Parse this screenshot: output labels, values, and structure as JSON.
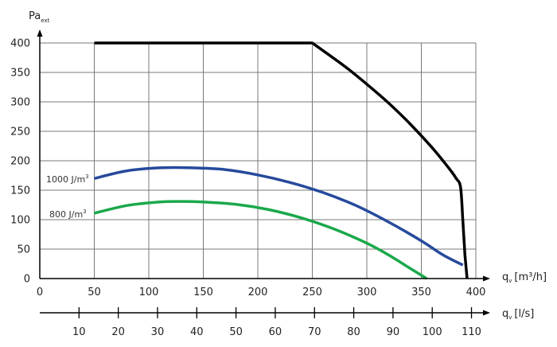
{
  "chart_data": {
    "type": "line",
    "y_axis": {
      "label": "Pa",
      "label_sub": "ext",
      "range": [
        0,
        400
      ],
      "ticks": [
        0,
        50,
        100,
        150,
        200,
        250,
        300,
        350,
        400
      ]
    },
    "x_axis": {
      "label": "q",
      "label_sub": "v",
      "unit": "[m³/h]",
      "range": [
        0,
        400
      ],
      "ticks": [
        0,
        50,
        100,
        150,
        200,
        250,
        300,
        350,
        400
      ]
    },
    "x2_axis": {
      "label": "q",
      "label_sub": "v",
      "unit": "[l/s]",
      "ticks": [
        10,
        20,
        30,
        40,
        50,
        60,
        70,
        80,
        90,
        100,
        110
      ]
    },
    "grid": true,
    "series": [
      {
        "name": "",
        "color": "#000000",
        "points": [
          [
            50,
            400
          ],
          [
            250,
            400
          ],
          [
            280,
            360
          ],
          [
            300,
            330
          ],
          [
            320,
            298
          ],
          [
            340,
            262
          ],
          [
            360,
            222
          ],
          [
            375,
            188
          ],
          [
            382,
            170
          ],
          [
            386,
            155
          ],
          [
            388,
            100
          ],
          [
            390,
            40
          ],
          [
            392,
            0
          ]
        ]
      },
      {
        "name": "1000 J/m",
        "name_sup": "3",
        "color": "#264a9c",
        "points": [
          [
            50,
            170
          ],
          [
            80,
            183
          ],
          [
            110,
            188
          ],
          [
            140,
            188
          ],
          [
            170,
            185
          ],
          [
            200,
            176
          ],
          [
            230,
            163
          ],
          [
            260,
            146
          ],
          [
            290,
            124
          ],
          [
            320,
            96
          ],
          [
            350,
            64
          ],
          [
            370,
            40
          ],
          [
            388,
            23
          ]
        ]
      },
      {
        "name": "800 J/m",
        "name_sup": "3",
        "color": "#1aa84b",
        "points": [
          [
            50,
            111
          ],
          [
            80,
            124
          ],
          [
            110,
            130
          ],
          [
            130,
            131
          ],
          [
            150,
            130
          ],
          [
            180,
            126
          ],
          [
            210,
            117
          ],
          [
            240,
            103
          ],
          [
            270,
            84
          ],
          [
            300,
            60
          ],
          [
            320,
            40
          ],
          [
            340,
            17
          ],
          [
            355,
            0
          ]
        ]
      }
    ]
  }
}
